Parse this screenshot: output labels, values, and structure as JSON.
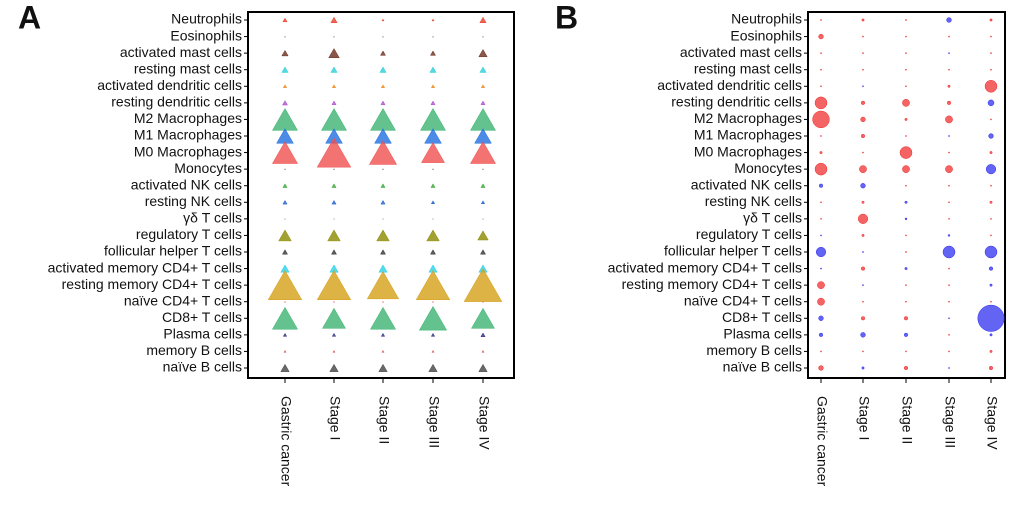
{
  "chart_data": [
    {
      "type": "triangle-matrix",
      "label": "A",
      "categories": [
        "Neutrophils",
        "Eosinophils",
        "activated mast cells",
        "resting mast cells",
        "activated dendritic cells",
        "resting dendritic cells",
        "M2 Macrophages",
        "M1 Macrophages",
        "M0 Macrophages",
        "Monocytes",
        "activated NK cells",
        "resting NK cells",
        "γδ T cells",
        "regulatory T cells",
        "follicular helper T cells",
        "activated memory CD4+ T cells",
        "resting memory CD4+ T cells",
        "naïve CD4+ T cells",
        "CD8+ T cells",
        "Plasma cells",
        "memory B cells",
        "naïve B cells"
      ],
      "columns": [
        "Gastric cancer",
        "Stage I",
        "Stage II",
        "Stage III",
        "Stage IV"
      ],
      "colors": [
        "#e8402a",
        "#999999",
        "#6b2e1e",
        "#2ad0d8",
        "#f08a20",
        "#b050d0",
        "#3cb371",
        "#1f6fe0",
        "#f05050",
        "#888888",
        "#3aa83a",
        "#2060d0",
        "#888888",
        "#8b8b00",
        "#333333",
        "#2ad0e8",
        "#d4a017",
        "#f07080",
        "#3cb371",
        "#2a2a80",
        "#e05050",
        "#444444"
      ],
      "values": [
        [
          1,
          1.5,
          0.5,
          0.5,
          1.5
        ],
        [
          0.3,
          0.3,
          0.3,
          0.3,
          0.3
        ],
        [
          1.5,
          2.5,
          1.2,
          1.2,
          2
        ],
        [
          1.5,
          1.5,
          1.5,
          1.5,
          1.5
        ],
        [
          0.8,
          0.8,
          0.8,
          0.8,
          0.8
        ],
        [
          1.2,
          1,
          1,
          1,
          1
        ],
        [
          6,
          6,
          6,
          6,
          6
        ],
        [
          4,
          4,
          4,
          4,
          4
        ],
        [
          6,
          8,
          6.5,
          5.5,
          6
        ],
        [
          0.3,
          0.3,
          0.3,
          0.3,
          0.3
        ],
        [
          1,
          1,
          1,
          1,
          1
        ],
        [
          1,
          1,
          1,
          0.8,
          0.8
        ],
        [
          0.2,
          0.2,
          0.2,
          0.2,
          0.2
        ],
        [
          3,
          3,
          3,
          3,
          2.5
        ],
        [
          1.2,
          1.2,
          1.2,
          1.2,
          1.2
        ],
        [
          2,
          2,
          2,
          2,
          2
        ],
        [
          8,
          8,
          7.5,
          8,
          9
        ],
        [
          0.3,
          0.3,
          0.3,
          0.3,
          0.3
        ],
        [
          6,
          5.5,
          6,
          6.5,
          5.5
        ],
        [
          0.8,
          0.8,
          0.8,
          0.8,
          1
        ],
        [
          0.5,
          0.5,
          0.5,
          0.5,
          0.5
        ],
        [
          2,
          2,
          2,
          2,
          2
        ]
      ]
    },
    {
      "type": "bubble-matrix",
      "label": "B",
      "categories": [
        "Neutrophils",
        "Eosinophils",
        "activated mast cells",
        "resting mast cells",
        "activated dendritic cells",
        "resting dendritic cells",
        "M2 Macrophages",
        "M1 Macrophages",
        "M0 Macrophages",
        "Monocytes",
        "activated NK cells",
        "resting NK cells",
        "γδ T cells",
        "regulatory T cells",
        "follicular helper T cells",
        "activated memory CD4+ T cells",
        "resting memory CD4+ T cells",
        "naïve CD4+ T cells",
        "CD8+ T cells",
        "Plasma cells",
        "memory B cells",
        "naïve B cells"
      ],
      "columns": [
        "Gastric cancer",
        "Stage I",
        "Stage II",
        "Stage III",
        "Stage IV"
      ],
      "positive_color": "#f03030",
      "negative_color": "#3030f0",
      "values": [
        [
          0.3,
          1,
          0.2,
          -2,
          1
        ],
        [
          2,
          0,
          0,
          0,
          0.2
        ],
        [
          0.2,
          0.2,
          0,
          -0.5,
          0.2
        ],
        [
          0.3,
          0.2,
          0.2,
          0.3,
          0.3
        ],
        [
          0.5,
          -0.5,
          0.5,
          1,
          5
        ],
        [
          5,
          1.5,
          3,
          1.5,
          -2.5
        ],
        [
          7,
          2,
          1,
          3,
          0.3
        ],
        [
          0.5,
          1.5,
          0.5,
          -0.5,
          -2
        ],
        [
          1,
          0.5,
          5,
          0.3,
          1
        ],
        [
          5,
          3,
          3,
          3,
          -4
        ],
        [
          -1.5,
          -2,
          0,
          0,
          0.3
        ],
        [
          0.3,
          1,
          -1,
          0.3,
          1
        ],
        [
          0.3,
          4,
          -0.8,
          0,
          0.2
        ],
        [
          -0.5,
          1,
          0,
          -0.8,
          0.5
        ],
        [
          -4,
          -0.5,
          0,
          -5,
          -5
        ],
        [
          -0.5,
          1.5,
          -1,
          0.3,
          -1.5
        ],
        [
          3,
          -0.5,
          0.5,
          0.3,
          -1
        ],
        [
          3,
          0.3,
          0,
          0,
          0.3
        ],
        [
          -2,
          1.5,
          1.5,
          -0.5,
          -11
        ],
        [
          -1.5,
          -2,
          -1.5,
          0.3,
          -1
        ],
        [
          0.3,
          0,
          0,
          0.2,
          1
        ],
        [
          2,
          -1,
          1.5,
          -0.3,
          1.5
        ]
      ]
    }
  ]
}
